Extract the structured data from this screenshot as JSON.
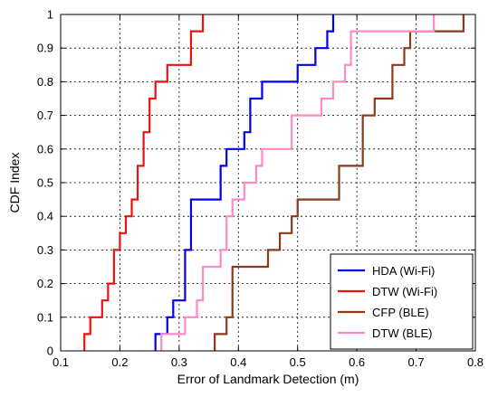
{
  "chart_data": {
    "type": "line",
    "subtype": "empirical-cdf-step",
    "title": "",
    "xlabel": "Error of Landmark Detection (m)",
    "ylabel": "CDF Index",
    "xlim": [
      0.1,
      0.8
    ],
    "ylim": [
      0,
      1
    ],
    "xticks": [
      "0.1",
      "0.2",
      "0.3",
      "0.4",
      "0.5",
      "0.6",
      "0.7",
      "0.8"
    ],
    "yticks": [
      "0",
      "0.1",
      "0.2",
      "0.3",
      "0.4",
      "0.5",
      "0.6",
      "0.7",
      "0.8",
      "0.9",
      "1"
    ],
    "xtick_values": [
      0.1,
      0.2,
      0.3,
      0.4,
      0.5,
      0.6,
      0.7,
      0.8
    ],
    "ytick_values": [
      0,
      0.1,
      0.2,
      0.3,
      0.4,
      0.5,
      0.6,
      0.7,
      0.8,
      0.9,
      1
    ],
    "grid": true,
    "legend_position": "bottom-right",
    "series": [
      {
        "name": "HDA (Wi-Fi)",
        "color": "#0000ee",
        "x": [
          0.26,
          0.28,
          0.29,
          0.31,
          0.32,
          0.37,
          0.38,
          0.41,
          0.42,
          0.44,
          0.47,
          0.5,
          0.52,
          0.53,
          0.55,
          0.56
        ],
        "y": [
          0.05,
          0.1,
          0.15,
          0.3,
          0.45,
          0.55,
          0.6,
          0.65,
          0.75,
          0.8,
          0.8,
          0.85,
          0.85,
          0.9,
          0.95,
          1.0
        ]
      },
      {
        "name": "DTW (Wi-Fi)",
        "color": "#ee1111",
        "x": [
          0.14,
          0.15,
          0.17,
          0.18,
          0.19,
          0.2,
          0.21,
          0.22,
          0.23,
          0.24,
          0.25,
          0.26,
          0.28,
          0.32,
          0.34
        ],
        "y": [
          0.05,
          0.1,
          0.15,
          0.2,
          0.3,
          0.35,
          0.4,
          0.45,
          0.55,
          0.65,
          0.75,
          0.8,
          0.85,
          0.95,
          1.0
        ]
      },
      {
        "name": "CFP (BLE)",
        "color": "#8b3a1a",
        "x": [
          0.36,
          0.38,
          0.39,
          0.45,
          0.47,
          0.49,
          0.5,
          0.57,
          0.61,
          0.63,
          0.66,
          0.67,
          0.68,
          0.69,
          0.78
        ],
        "y": [
          0.05,
          0.1,
          0.25,
          0.3,
          0.35,
          0.4,
          0.45,
          0.55,
          0.7,
          0.75,
          0.85,
          0.85,
          0.9,
          0.95,
          1.0
        ]
      },
      {
        "name": "DTW (BLE)",
        "color": "#ff88c8",
        "x": [
          0.27,
          0.31,
          0.33,
          0.34,
          0.37,
          0.38,
          0.39,
          0.41,
          0.43,
          0.44,
          0.49,
          0.53,
          0.54,
          0.56,
          0.58,
          0.59,
          0.73
        ],
        "y": [
          0.05,
          0.1,
          0.15,
          0.25,
          0.3,
          0.4,
          0.45,
          0.5,
          0.55,
          0.6,
          0.7,
          0.7,
          0.75,
          0.8,
          0.85,
          0.95,
          1.0
        ]
      }
    ]
  }
}
